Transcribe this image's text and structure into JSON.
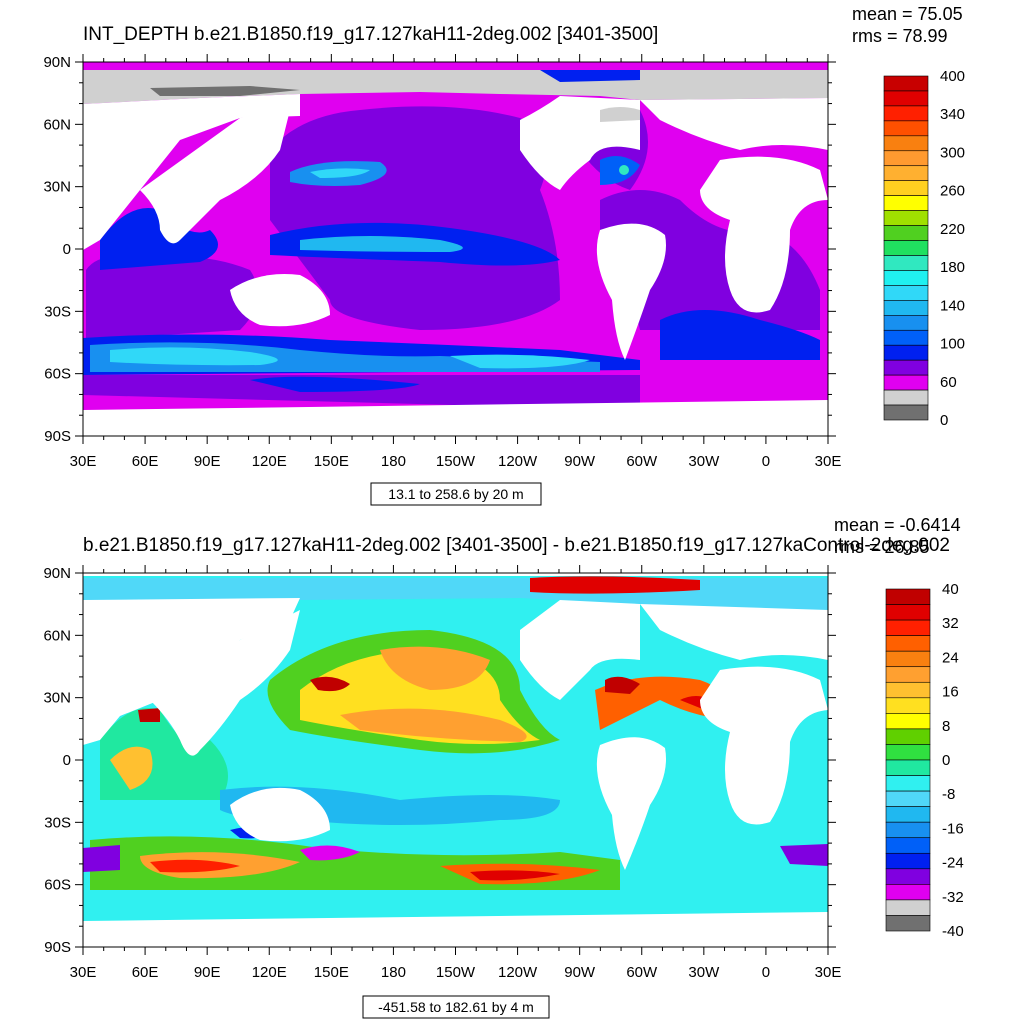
{
  "panels": [
    {
      "id": "top",
      "title": "INT_DEPTH b.e21.B1850.f19_g17.127kaH11-2deg.002 [3401-3500]",
      "mean_text": "mean = 75.05",
      "rms_text": "rms = 78.99",
      "range_text": "13.1 to 258.6 by 20 m",
      "lat_ticks": [
        "90N",
        "60N",
        "30N",
        "0",
        "30S",
        "60S",
        "90S"
      ],
      "lon_ticks": [
        "30E",
        "60E",
        "90E",
        "120E",
        "150E",
        "180",
        "150W",
        "120W",
        "90W",
        "60W",
        "30W",
        "0",
        "30E"
      ],
      "colorbar": {
        "labels": [
          "400",
          "340",
          "300",
          "260",
          "220",
          "180",
          "140",
          "100",
          "60",
          "0"
        ],
        "colors": [
          "#c80000",
          "#e00000",
          "#ff2000",
          "#ff5000",
          "#f98010",
          "#ff9a30",
          "#ffb030",
          "#ffd020",
          "#ffff00",
          "#a0e000",
          "#50d020",
          "#20e060",
          "#30e8c0",
          "#20f0f0",
          "#30d8f8",
          "#20b8f0",
          "#1890f0",
          "#0060f8",
          "#0020f0",
          "#8000e0",
          "#e000f0",
          "#d0d0d0",
          "#707070"
        ]
      }
    },
    {
      "id": "bottom",
      "title": "b.e21.B1850.f19_g17.127kaH11-2deg.002 [3401-3500] - b.e21.B1850.f19_g17.127kaControl-2deg.002",
      "mean_text": "mean = -0.6414",
      "rms_text": "rms = 26.85",
      "range_text": "-451.58 to 182.61 by 4 m",
      "lat_ticks": [
        "90N",
        "60N",
        "30N",
        "0",
        "30S",
        "60S",
        "90S"
      ],
      "lon_ticks": [
        "30E",
        "60E",
        "90E",
        "120E",
        "150E",
        "180",
        "150W",
        "120W",
        "90W",
        "60W",
        "30W",
        "0",
        "30E"
      ],
      "colorbar": {
        "labels": [
          "40",
          "32",
          "24",
          "16",
          "8",
          "0",
          "-8",
          "-16",
          "-24",
          "-32",
          "-40"
        ],
        "colors": [
          "#c00000",
          "#e00000",
          "#ff2000",
          "#ff6000",
          "#f98010",
          "#ffa030",
          "#ffc030",
          "#ffe020",
          "#ffff00",
          "#60d000",
          "#30e040",
          "#20e8a0",
          "#30f0f0",
          "#50d8f8",
          "#20b8f0",
          "#1890f0",
          "#0060f8",
          "#0020f0",
          "#8000e0",
          "#e000f0",
          "#d0d0d0",
          "#707070"
        ]
      }
    }
  ]
}
